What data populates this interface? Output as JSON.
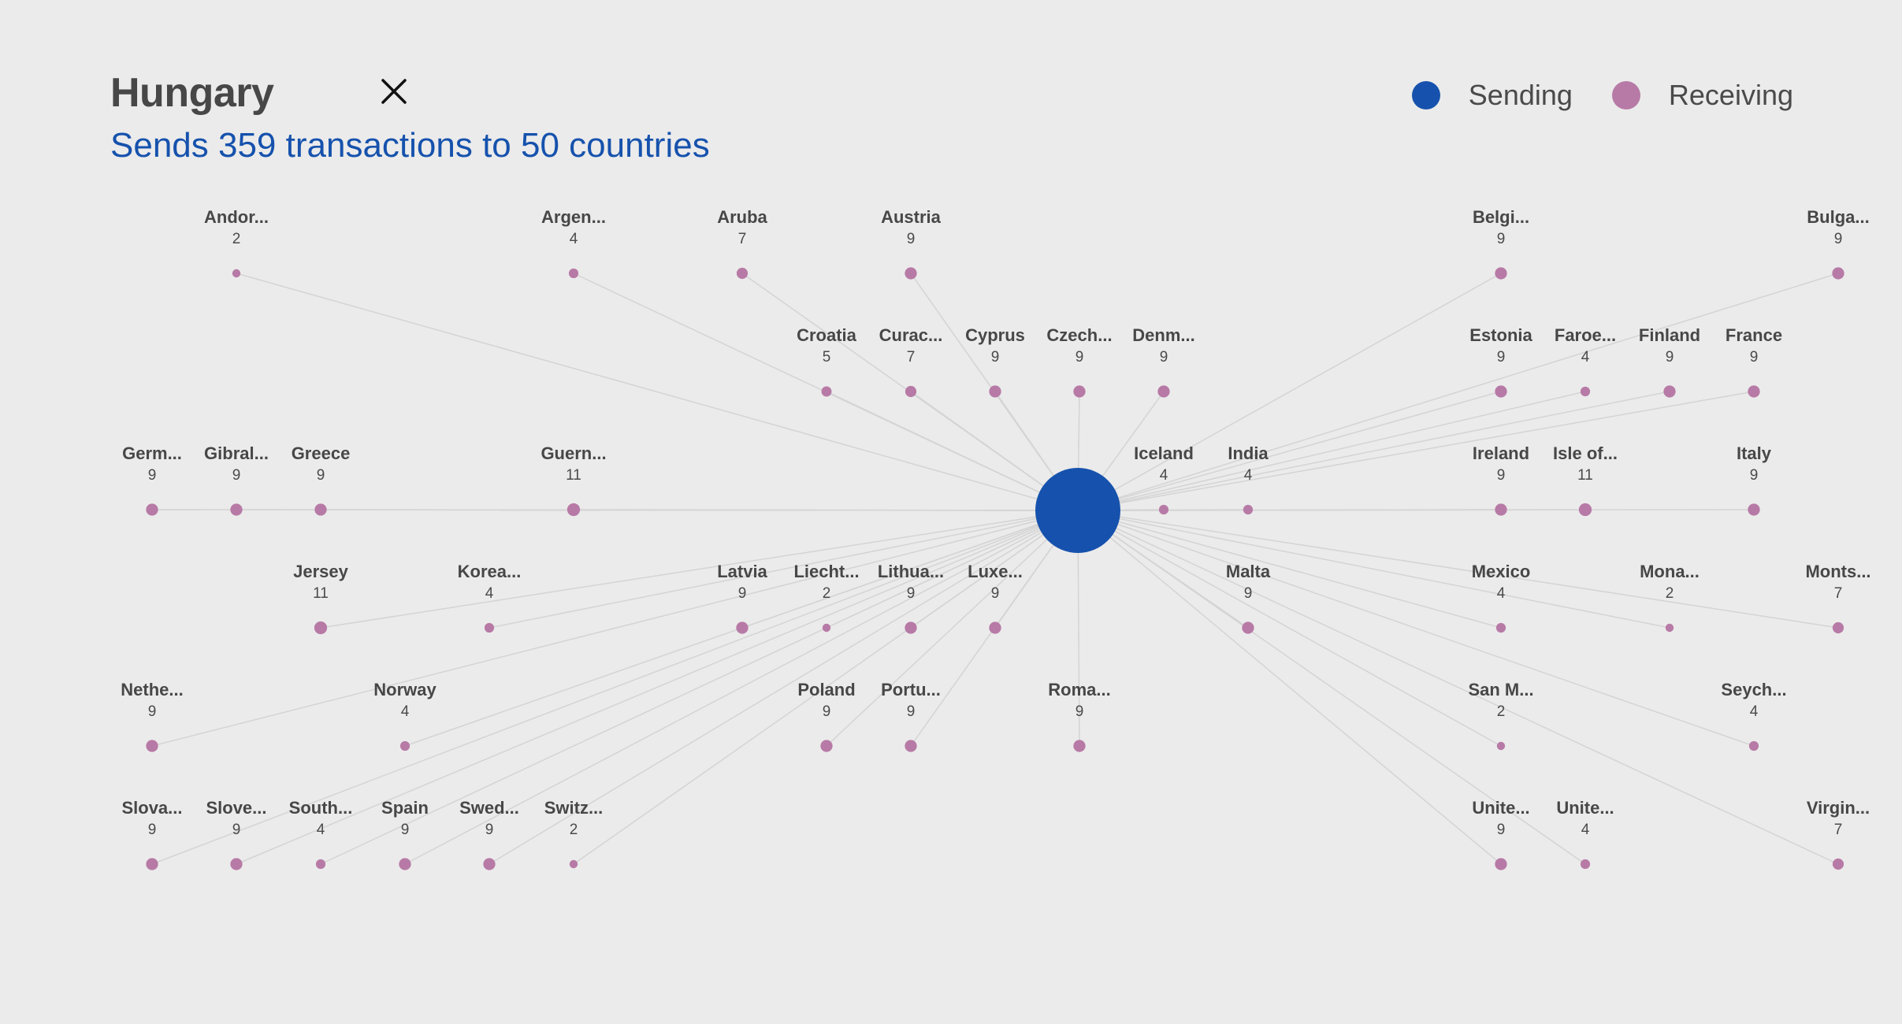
{
  "header": {
    "title": "Hungary",
    "subtitle": "Sends 359 transactions to 50 countries"
  },
  "legend": [
    {
      "label": "Sending",
      "color": "#1652ad"
    },
    {
      "label": "Receiving",
      "color": "#b77aa6"
    }
  ],
  "colors": {
    "center": "#1652ad",
    "node": "#b77aa6",
    "link": "#d4d4d4"
  },
  "center": {
    "name": "Hungary"
  },
  "grid_rows": [
    [
      {
        "col": 1,
        "name": "Andor...",
        "count": 2
      },
      {
        "col": 5,
        "name": "Argen...",
        "count": 4
      },
      {
        "col": 7,
        "name": "Aruba",
        "count": 7
      },
      {
        "col": 9,
        "name": "Austria",
        "count": 9
      },
      {
        "col": 16,
        "name": "Belgi...",
        "count": 9
      },
      {
        "col": 20,
        "name": "Bulga...",
        "count": 9
      }
    ],
    [
      {
        "col": 8,
        "name": "Croatia",
        "count": 5
      },
      {
        "col": 9,
        "name": "Curac...",
        "count": 7
      },
      {
        "col": 10,
        "name": "Cyprus",
        "count": 9
      },
      {
        "col": 11,
        "name": "Czech...",
        "count": 9
      },
      {
        "col": 12,
        "name": "Denm...",
        "count": 9
      },
      {
        "col": 16,
        "name": "Estonia",
        "count": 9
      },
      {
        "col": 17,
        "name": "Faroe...",
        "count": 4
      },
      {
        "col": 18,
        "name": "Finland",
        "count": 9
      },
      {
        "col": 19,
        "name": "France",
        "count": 9
      }
    ],
    [
      {
        "col": 0,
        "name": "Germ...",
        "count": 9
      },
      {
        "col": 1,
        "name": "Gibral...",
        "count": 9
      },
      {
        "col": 2,
        "name": "Greece",
        "count": 9
      },
      {
        "col": 5,
        "name": "Guern...",
        "count": 11
      },
      {
        "col": 12,
        "name": "Iceland",
        "count": 4
      },
      {
        "col": 13,
        "name": "India",
        "count": 4
      },
      {
        "col": 16,
        "name": "Ireland",
        "count": 9
      },
      {
        "col": 17,
        "name": "Isle of...",
        "count": 11
      },
      {
        "col": 19,
        "name": "Italy",
        "count": 9
      }
    ],
    [
      {
        "col": 2,
        "name": "Jersey",
        "count": 11
      },
      {
        "col": 4,
        "name": "Korea...",
        "count": 4
      },
      {
        "col": 7,
        "name": "Latvia",
        "count": 9
      },
      {
        "col": 8,
        "name": "Liecht...",
        "count": 2
      },
      {
        "col": 9,
        "name": "Lithua...",
        "count": 9
      },
      {
        "col": 10,
        "name": "Luxe...",
        "count": 9
      },
      {
        "col": 13,
        "name": "Malta",
        "count": 9
      },
      {
        "col": 16,
        "name": "Mexico",
        "count": 4
      },
      {
        "col": 18,
        "name": "Mona...",
        "count": 2
      },
      {
        "col": 20,
        "name": "Monts...",
        "count": 7
      }
    ],
    [
      {
        "col": 0,
        "name": "Nethe...",
        "count": 9
      },
      {
        "col": 3,
        "name": "Norway",
        "count": 4
      },
      {
        "col": 8,
        "name": "Poland",
        "count": 9
      },
      {
        "col": 9,
        "name": "Portu...",
        "count": 9
      },
      {
        "col": 11,
        "name": "Roma...",
        "count": 9
      },
      {
        "col": 16,
        "name": "San M...",
        "count": 2
      },
      {
        "col": 19,
        "name": "Seych...",
        "count": 4
      }
    ],
    [
      {
        "col": 0,
        "name": "Slova...",
        "count": 9
      },
      {
        "col": 1,
        "name": "Slove...",
        "count": 9
      },
      {
        "col": 2,
        "name": "South...",
        "count": 4
      },
      {
        "col": 3,
        "name": "Spain",
        "count": 9
      },
      {
        "col": 4,
        "name": "Swed...",
        "count": 9
      },
      {
        "col": 5,
        "name": "Switz...",
        "count": 2
      },
      {
        "col": 16,
        "name": "Unite...",
        "count": 9
      },
      {
        "col": 17,
        "name": "Unite...",
        "count": 4
      },
      {
        "col": 20,
        "name": "Virgin...",
        "count": 7
      }
    ]
  ]
}
